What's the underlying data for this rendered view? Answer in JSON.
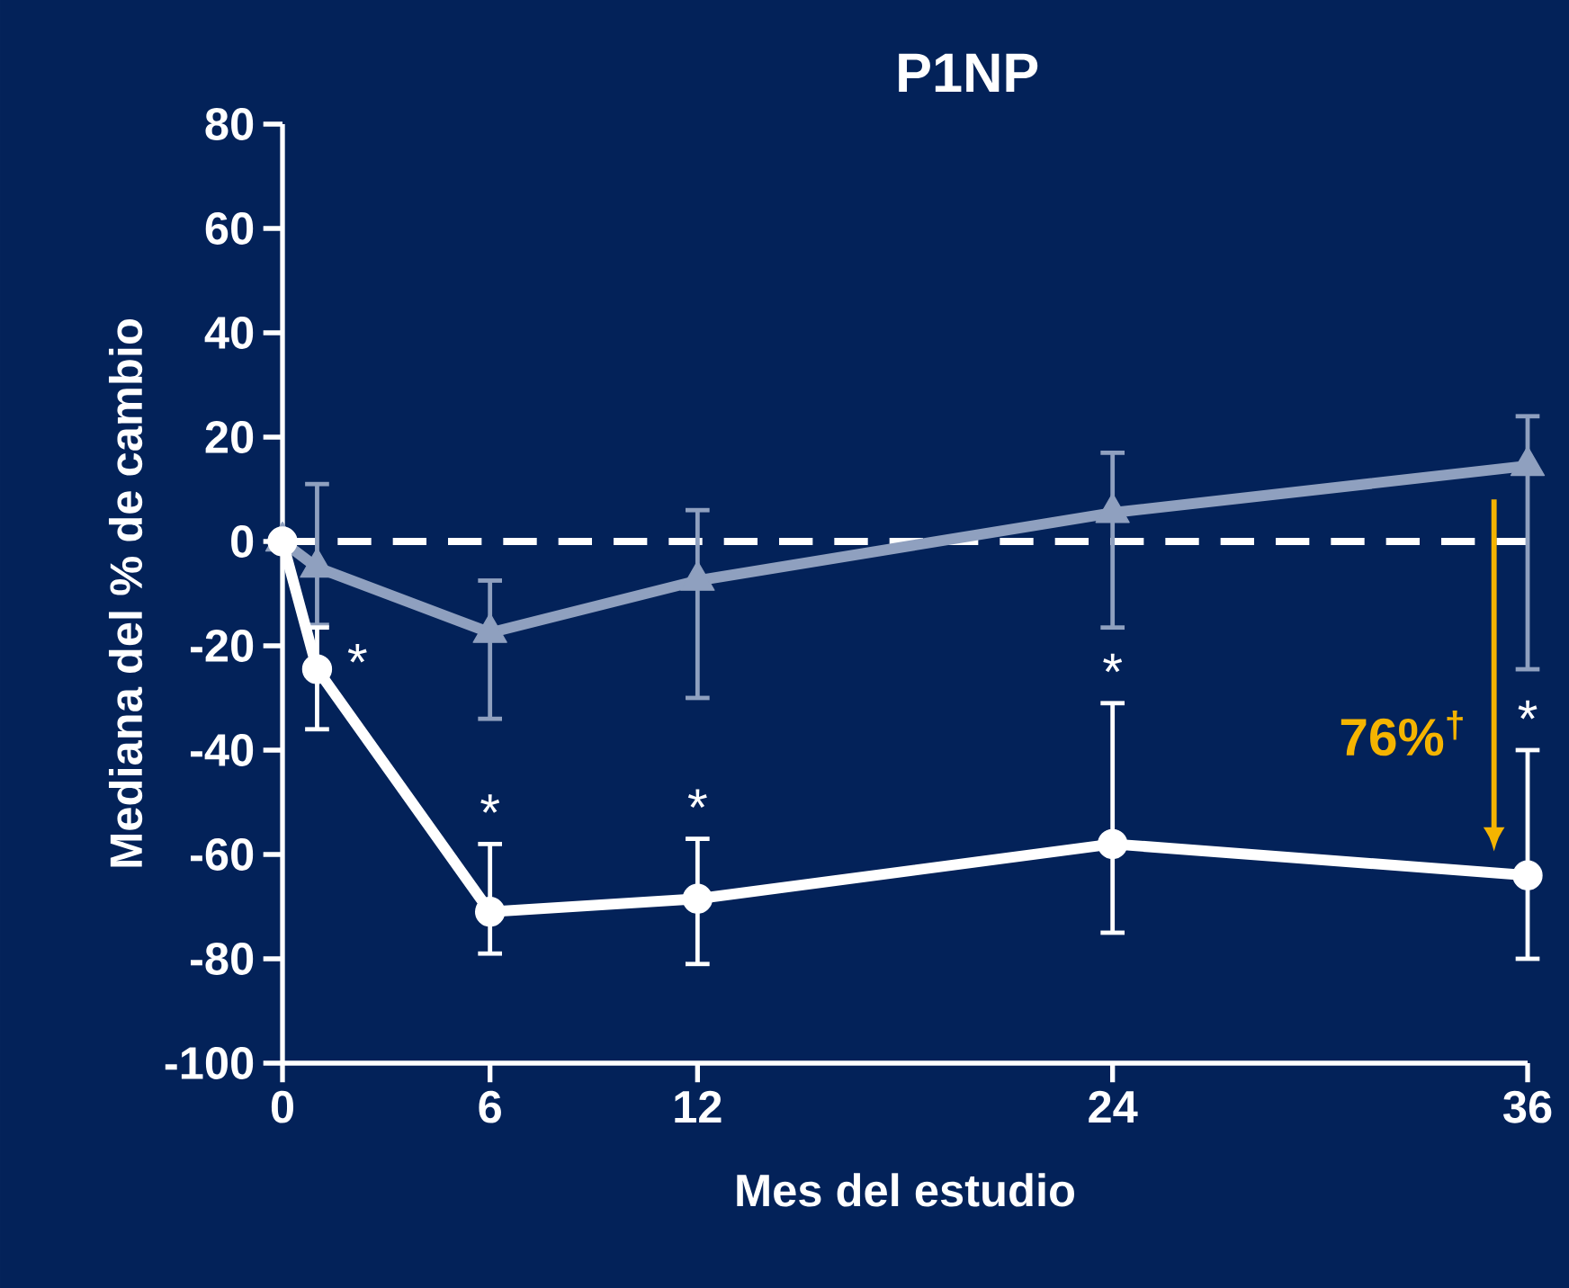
{
  "chart_data": {
    "type": "line",
    "title": "P1NP",
    "xlabel": "Mes del estudio",
    "ylabel": "Mediana del % de cambio",
    "xlim": [
      0,
      36
    ],
    "xticks": [
      0,
      6,
      12,
      24,
      36
    ],
    "ylim": [
      -100,
      80
    ],
    "yticks": [
      -100,
      -80,
      -60,
      -40,
      -20,
      0,
      20,
      40,
      60,
      80
    ],
    "grid": false,
    "series": [
      {
        "color": "#8fa0bf",
        "marker": "triangle",
        "x": [
          0,
          1,
          6,
          12,
          24,
          36
        ],
        "values": [
          0,
          -5,
          -17.5,
          -7.5,
          5.5,
          14.5
        ],
        "errors": [
          null,
          [
            -16,
            11
          ],
          [
            -34,
            -7.5
          ],
          [
            -30,
            6
          ],
          [
            -16.5,
            17
          ],
          [
            -24.5,
            24
          ]
        ]
      },
      {
        "color": "#ffffff",
        "marker": "circle",
        "x": [
          0,
          1,
          6,
          12,
          24,
          36
        ],
        "values": [
          0,
          -24.5,
          -71,
          -68.5,
          -58,
          -64
        ],
        "errors": [
          null,
          [
            -36,
            -16.5
          ],
          [
            -79,
            -58
          ],
          [
            -81,
            -57
          ],
          [
            -75,
            -31
          ],
          [
            -80,
            -40
          ]
        ]
      }
    ],
    "ref_lines": [
      {
        "axis": "y",
        "value": 0,
        "color": "#ffffff",
        "line_style": "dashed"
      }
    ],
    "annotations": [
      {
        "text": "*",
        "x": 1,
        "y": -24.5
      },
      {
        "text": "*",
        "x": 6,
        "y": -58
      },
      {
        "text": "*",
        "x": 12,
        "y": -57
      },
      {
        "text": "*",
        "x": 24,
        "y": -31
      },
      {
        "text": "*",
        "x": 36,
        "y": -40
      },
      "76%$^{†}$"
    ]
  }
}
